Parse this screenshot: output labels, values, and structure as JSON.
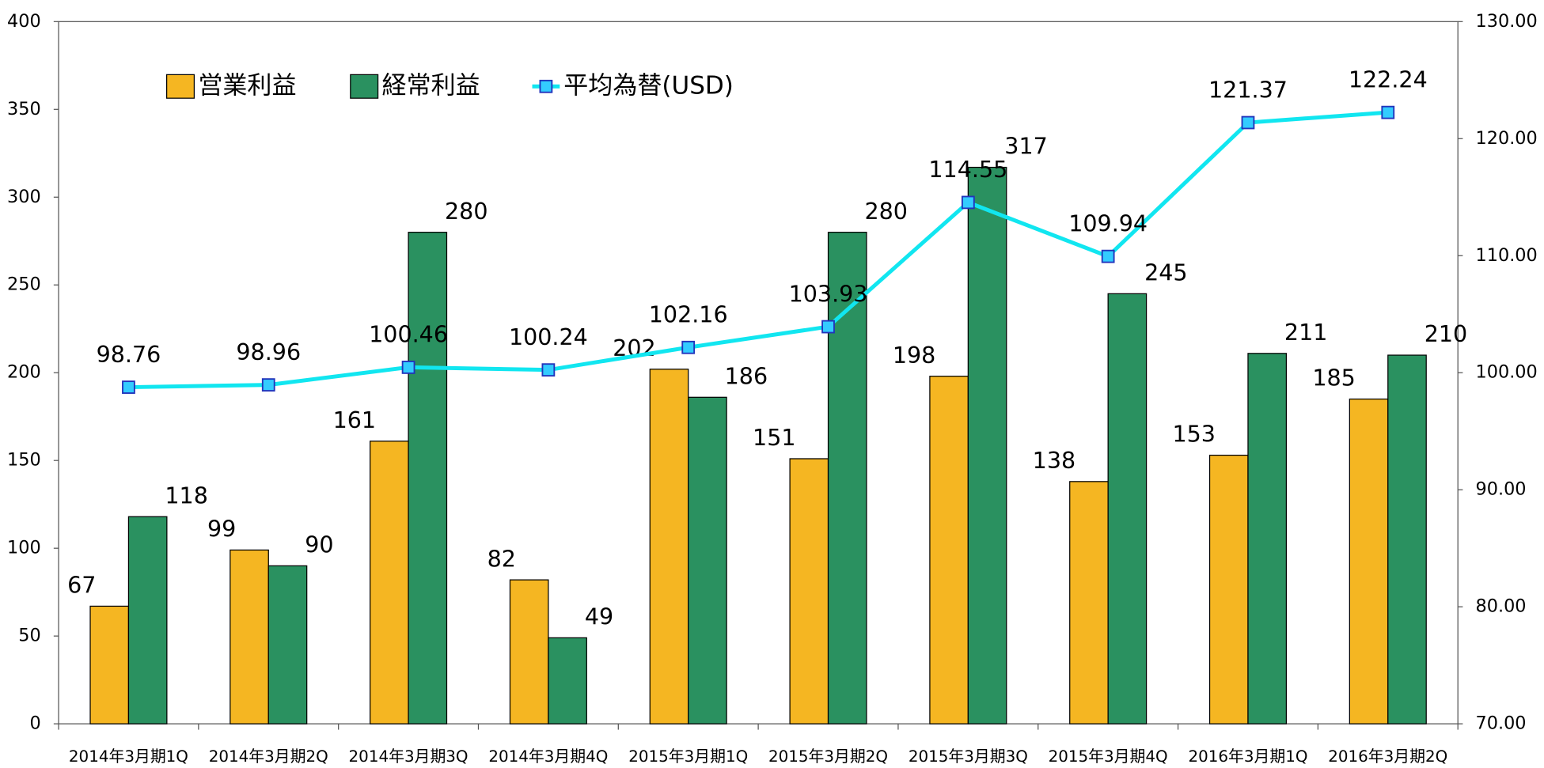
{
  "chart_data": {
    "type": "bar",
    "categories": [
      "2014年3月期1Q",
      "2014年3月期2Q",
      "2014年3月期3Q",
      "2014年3月期4Q",
      "2015年3月期1Q",
      "2015年3月期2Q",
      "2015年3月期3Q",
      "2015年3月期4Q",
      "2016年3月期1Q",
      "2016年3月期2Q"
    ],
    "series": [
      {
        "name": "営業利益",
        "type": "bar",
        "color": "#f5b622",
        "values": [
          67,
          99,
          161,
          82,
          202,
          151,
          198,
          138,
          153,
          185
        ]
      },
      {
        "name": "経常利益",
        "type": "bar",
        "color": "#2a9160",
        "values": [
          118,
          90,
          280,
          49,
          186,
          280,
          317,
          245,
          211,
          210
        ]
      },
      {
        "name": "平均為替(USD)",
        "type": "line",
        "axis": "y2",
        "color": "#11e6f0",
        "marker_color": "#33ccff",
        "values": [
          98.76,
          98.96,
          100.46,
          100.24,
          102.16,
          103.93,
          114.55,
          109.94,
          121.37,
          122.24
        ]
      }
    ],
    "ylim": [
      0,
      400
    ],
    "yticks": [
      0,
      50,
      100,
      150,
      200,
      250,
      300,
      350,
      400
    ],
    "y2lim": [
      70,
      130
    ],
    "y2ticks": [
      {
        "value": 70,
        "label": "70.00"
      },
      {
        "value": 80,
        "label": "80.00"
      },
      {
        "value": 90,
        "label": "90.00"
      },
      {
        "value": 100,
        "label": "100.00"
      },
      {
        "value": 110,
        "label": "110.00"
      },
      {
        "value": 120,
        "label": "120.00"
      },
      {
        "value": 130,
        "label": "130.00"
      }
    ],
    "legend": "top-left",
    "grid": false
  }
}
